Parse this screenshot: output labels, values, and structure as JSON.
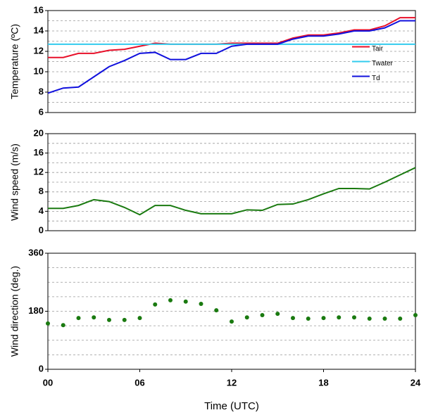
{
  "chart_data": [
    {
      "type": "line",
      "ylabel": "Temperature (ºC)",
      "x": [
        0,
        1,
        2,
        3,
        4,
        5,
        6,
        7,
        8,
        9,
        10,
        11,
        12,
        13,
        14,
        15,
        16,
        17,
        18,
        19,
        20,
        21,
        22,
        23,
        24
      ],
      "xlim": [
        0,
        24
      ],
      "ylim": [
        6,
        16
      ],
      "yticks": [
        6,
        8,
        10,
        12,
        14,
        16
      ],
      "grid_lines": [
        7,
        8,
        9,
        10,
        11,
        12,
        13,
        14,
        15
      ],
      "legend_loc": "center right",
      "series": [
        {
          "name": "Tair",
          "color": "#e8102a",
          "values": [
            11.4,
            11.4,
            11.8,
            11.8,
            12.1,
            12.2,
            12.5,
            12.8,
            12.7,
            12.7,
            12.7,
            12.7,
            12.8,
            12.8,
            12.8,
            12.8,
            13.3,
            13.6,
            13.6,
            13.8,
            14.1,
            14.1,
            14.5,
            15.3,
            15.3
          ]
        },
        {
          "name": "Twater",
          "color": "#33ccee",
          "values": [
            12.7,
            12.7,
            12.7,
            12.7,
            12.7,
            12.7,
            12.7,
            12.7,
            12.7,
            12.7,
            12.7,
            12.7,
            12.7,
            12.7,
            12.7,
            12.7,
            12.7,
            12.7,
            12.7,
            12.7,
            12.7,
            12.7,
            12.7,
            12.7,
            12.7
          ]
        },
        {
          "name": "Td",
          "color": "#1010dd",
          "values": [
            7.9,
            8.4,
            8.5,
            9.5,
            10.5,
            11.1,
            11.8,
            11.9,
            11.2,
            11.2,
            11.8,
            11.8,
            12.5,
            12.7,
            12.7,
            12.7,
            13.2,
            13.5,
            13.5,
            13.7,
            14.0,
            14.0,
            14.3,
            15.0,
            15.0
          ]
        }
      ]
    },
    {
      "type": "line",
      "ylabel": "Wind speed (m/s)",
      "x": [
        0,
        1,
        2,
        3,
        4,
        5,
        6,
        7,
        8,
        9,
        10,
        11,
        12,
        13,
        14,
        15,
        16,
        17,
        18,
        19,
        20,
        21,
        22,
        23,
        24
      ],
      "xlim": [
        0,
        24
      ],
      "ylim": [
        0,
        20
      ],
      "yticks": [
        0,
        4,
        8,
        12,
        16,
        20
      ],
      "grid_lines": [
        2,
        4,
        6,
        8,
        10,
        12,
        14,
        16,
        18
      ],
      "color": "#1a7a10",
      "values": [
        4.6,
        4.6,
        5.2,
        6.4,
        6.0,
        4.8,
        3.3,
        5.2,
        5.2,
        4.2,
        3.5,
        3.5,
        3.5,
        4.3,
        4.2,
        5.4,
        5.5,
        6.4,
        7.6,
        8.7,
        8.7,
        8.6,
        10.0,
        11.5,
        13.0
      ]
    },
    {
      "type": "scatter",
      "ylabel": "Wind direction (deg.)",
      "xlabel": "Time (UTC)",
      "x": [
        0,
        1,
        2,
        3,
        4,
        5,
        6,
        7,
        8,
        9,
        10,
        11,
        12,
        13,
        14,
        15,
        16,
        17,
        18,
        19,
        20,
        21,
        22,
        23,
        24
      ],
      "xlim": [
        0,
        24
      ],
      "xticks": [
        {
          "value": 0,
          "label": "00"
        },
        {
          "value": 6,
          "label": "06"
        },
        12,
        18,
        24
      ],
      "ylim": [
        0,
        360
      ],
      "yticks": [
        0,
        180,
        360
      ],
      "grid_lines": [
        45,
        90,
        135,
        180,
        225,
        270,
        315
      ],
      "color": "#1a7a10",
      "values": [
        142,
        137,
        159,
        161,
        153,
        153,
        159,
        201,
        214,
        210,
        203,
        183,
        148,
        161,
        168,
        172,
        159,
        157,
        159,
        161,
        161,
        157,
        157,
        157,
        168
      ]
    }
  ]
}
